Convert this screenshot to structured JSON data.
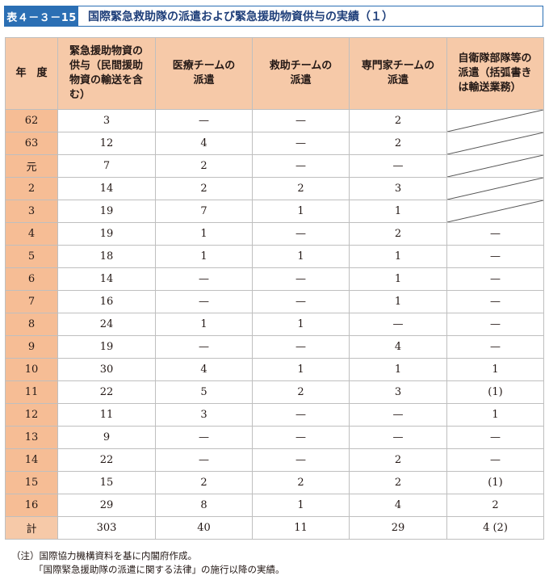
{
  "title": {
    "label": "表４－３－15",
    "text": "国際緊急救助隊の派遣および緊急援助物資供与の実績（１）"
  },
  "columns": [
    "年　度",
    "緊急援助物資の供与（民間援助物資の輸送を含む）",
    "医療チームの派遣",
    "救助チームの派遣",
    "専門家チームの派遣",
    "自衛隊部隊等の派遣（括弧書きは輸送業務）"
  ],
  "rows": [
    {
      "year": "62",
      "supply": "3",
      "medical": "—",
      "rescue": "—",
      "expert": "2",
      "sdf": "",
      "sdf_slash": true
    },
    {
      "year": "63",
      "supply": "12",
      "medical": "4",
      "rescue": "—",
      "expert": "2",
      "sdf": "",
      "sdf_slash": true
    },
    {
      "year": "元",
      "supply": "7",
      "medical": "2",
      "rescue": "—",
      "expert": "—",
      "sdf": "",
      "sdf_slash": true
    },
    {
      "year": "2",
      "supply": "14",
      "medical": "2",
      "rescue": "2",
      "expert": "3",
      "sdf": "",
      "sdf_slash": true
    },
    {
      "year": "3",
      "supply": "19",
      "medical": "7",
      "rescue": "1",
      "expert": "1",
      "sdf": "",
      "sdf_slash": true
    },
    {
      "year": "4",
      "supply": "19",
      "medical": "1",
      "rescue": "—",
      "expert": "2",
      "sdf": "—",
      "sdf_slash": false
    },
    {
      "year": "5",
      "supply": "18",
      "medical": "1",
      "rescue": "1",
      "expert": "1",
      "sdf": "—",
      "sdf_slash": false
    },
    {
      "year": "6",
      "supply": "14",
      "medical": "—",
      "rescue": "—",
      "expert": "1",
      "sdf": "—",
      "sdf_slash": false
    },
    {
      "year": "7",
      "supply": "16",
      "medical": "—",
      "rescue": "—",
      "expert": "1",
      "sdf": "—",
      "sdf_slash": false
    },
    {
      "year": "8",
      "supply": "24",
      "medical": "1",
      "rescue": "1",
      "expert": "—",
      "sdf": "—",
      "sdf_slash": false
    },
    {
      "year": "9",
      "supply": "19",
      "medical": "—",
      "rescue": "—",
      "expert": "4",
      "sdf": "—",
      "sdf_slash": false
    },
    {
      "year": "10",
      "supply": "30",
      "medical": "4",
      "rescue": "1",
      "expert": "1",
      "sdf": "1",
      "sdf_slash": false
    },
    {
      "year": "11",
      "supply": "22",
      "medical": "5",
      "rescue": "2",
      "expert": "3",
      "sdf": "(1)",
      "sdf_slash": false
    },
    {
      "year": "12",
      "supply": "11",
      "medical": "3",
      "rescue": "—",
      "expert": "—",
      "sdf": "1",
      "sdf_slash": false
    },
    {
      "year": "13",
      "supply": "9",
      "medical": "—",
      "rescue": "—",
      "expert": "—",
      "sdf": "—",
      "sdf_slash": false
    },
    {
      "year": "14",
      "supply": "22",
      "medical": "—",
      "rescue": "—",
      "expert": "2",
      "sdf": "—",
      "sdf_slash": false
    },
    {
      "year": "15",
      "supply": "15",
      "medical": "2",
      "rescue": "2",
      "expert": "2",
      "sdf": "(1)",
      "sdf_slash": false
    },
    {
      "year": "16",
      "supply": "29",
      "medical": "8",
      "rescue": "1",
      "expert": "4",
      "sdf": "2",
      "sdf_slash": false
    }
  ],
  "total": {
    "year": "計",
    "supply": "303",
    "medical": "40",
    "rescue": "11",
    "expert": "29",
    "sdf": "4 (2)"
  },
  "notes": {
    "line1": "（注）国際協力機構資料を基に内閣府作成。",
    "line2": "「国際緊急援助隊の派遣に関する法律」の施行以降の実績。"
  },
  "colors": {
    "header_bg": "#f6c9a8",
    "year_bg": "#f6bd95",
    "title_accent": "#2b6fb4"
  }
}
